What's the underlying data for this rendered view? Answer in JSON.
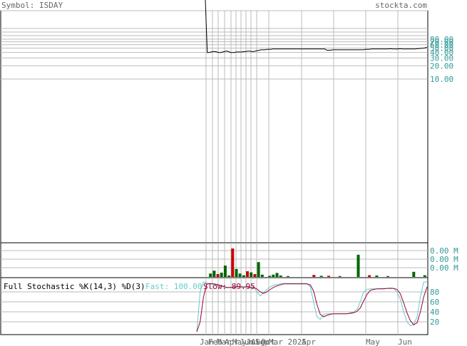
{
  "header": {
    "symbol_label": "Symbol: ISDAY",
    "site_label": "stockta.com"
  },
  "colors": {
    "price_line": "#000000",
    "grid": "#bbbbbb",
    "axis_text": "#339999",
    "volume_up": "#006600",
    "volume_down": "#cc0000",
    "fast_line": "#66cccc",
    "slow_line": "#990033",
    "stoch_title": "#000000"
  },
  "chart_data": [
    {
      "type": "line",
      "panel": "price",
      "scale": "log",
      "y_ticks": [
        "80.00",
        "70.00",
        "60.00",
        "50.00",
        "40.00",
        "30.00",
        "20.00",
        "10.00"
      ],
      "y_tick_values": [
        80,
        70,
        60,
        50,
        40,
        30,
        20,
        10
      ],
      "x_ticks": [
        "Jan",
        "Feb",
        "Mar",
        "Apr",
        "May",
        "Jun",
        "Jul",
        "Aug",
        "Sep",
        "Oct",
        "Nov",
        "Dec",
        "Mar 2025",
        "Apr",
        "May",
        "Jun"
      ],
      "series": [
        {
          "values": [
            5000,
            40,
            40,
            41,
            42,
            42,
            41,
            40,
            40,
            41,
            42,
            43,
            42,
            40,
            40,
            40,
            41,
            41,
            41,
            41,
            42,
            42,
            43,
            43,
            42,
            42,
            43,
            44,
            45,
            46,
            46,
            46,
            47,
            47,
            47,
            48,
            48,
            48,
            48,
            48,
            48,
            48,
            48,
            48,
            48,
            48,
            48,
            48,
            48,
            48,
            48,
            48,
            48,
            48,
            48,
            48,
            48,
            48,
            48,
            48,
            48,
            48,
            48,
            45,
            45,
            45,
            46,
            46,
            46,
            46,
            46,
            46,
            46,
            46,
            46,
            46,
            46,
            46,
            46,
            46,
            46,
            46,
            46,
            47,
            47,
            47,
            48,
            48,
            48,
            48,
            48,
            48,
            48,
            48,
            48,
            48,
            49,
            48,
            48,
            48,
            48,
            49,
            48,
            48,
            48,
            48,
            48,
            48,
            48,
            48,
            49,
            49,
            50,
            50,
            51,
            52
          ]
        }
      ]
    },
    {
      "type": "bar",
      "panel": "volume",
      "y_ticks": [
        "0.00 M",
        "0.00 M",
        "0.00 M"
      ],
      "bars": [
        {
          "i": 1,
          "v": 0.12,
          "dir": "up"
        },
        {
          "i": 2,
          "v": 0.22,
          "dir": "up"
        },
        {
          "i": 3,
          "v": 0.1,
          "dir": "down"
        },
        {
          "i": 4,
          "v": 0.15,
          "dir": "up"
        },
        {
          "i": 5,
          "v": 0.4,
          "dir": "up"
        },
        {
          "i": 6,
          "v": 0.05,
          "dir": "up"
        },
        {
          "i": 7,
          "v": 1.0,
          "dir": "down"
        },
        {
          "i": 8,
          "v": 0.28,
          "dir": "up"
        },
        {
          "i": 9,
          "v": 0.12,
          "dir": "up"
        },
        {
          "i": 10,
          "v": 0.06,
          "dir": "up"
        },
        {
          "i": 11,
          "v": 0.2,
          "dir": "down"
        },
        {
          "i": 12,
          "v": 0.16,
          "dir": "up"
        },
        {
          "i": 13,
          "v": 0.1,
          "dir": "down"
        },
        {
          "i": 14,
          "v": 0.52,
          "dir": "up"
        },
        {
          "i": 15,
          "v": 0.08,
          "dir": "up"
        },
        {
          "i": 17,
          "v": 0.04,
          "dir": "up"
        },
        {
          "i": 18,
          "v": 0.08,
          "dir": "up"
        },
        {
          "i": 19,
          "v": 0.14,
          "dir": "up"
        },
        {
          "i": 20,
          "v": 0.05,
          "dir": "up"
        },
        {
          "i": 22,
          "v": 0.03,
          "dir": "up"
        },
        {
          "i": 29,
          "v": 0.07,
          "dir": "down"
        },
        {
          "i": 31,
          "v": 0.04,
          "dir": "up"
        },
        {
          "i": 33,
          "v": 0.04,
          "dir": "down"
        },
        {
          "i": 36,
          "v": 0.03,
          "dir": "up"
        },
        {
          "i": 41,
          "v": 0.78,
          "dir": "up"
        },
        {
          "i": 44,
          "v": 0.06,
          "dir": "down"
        },
        {
          "i": 46,
          "v": 0.05,
          "dir": "up"
        },
        {
          "i": 49,
          "v": 0.03,
          "dir": "up"
        },
        {
          "i": 56,
          "v": 0.18,
          "dir": "up"
        },
        {
          "i": 59,
          "v": 0.06,
          "dir": "up"
        }
      ]
    },
    {
      "type": "line",
      "panel": "stochastic",
      "title": "Full Stochastic %K(14,3) %D(3)",
      "fast_label": "Fast: 100.00",
      "slow_label": "Slow: 89.95",
      "y_ticks": [
        "80",
        "60",
        "40",
        "20"
      ],
      "y_tick_values": [
        80,
        60,
        40,
        20
      ],
      "ylim": [
        0,
        100
      ],
      "series": [
        {
          "name": "Fast",
          "values": [
            0,
            80,
            100,
            98,
            96,
            95,
            94,
            92,
            90,
            88,
            89,
            90,
            91,
            90,
            89,
            90,
            89,
            90,
            80,
            72,
            78,
            85,
            90,
            93,
            95,
            96,
            97,
            97,
            97,
            97,
            97,
            97,
            97,
            97,
            90,
            60,
            30,
            25,
            35,
            36,
            36,
            36,
            36,
            36,
            36,
            36,
            38,
            40,
            45,
            60,
            80,
            85,
            86,
            86,
            86,
            87,
            87,
            87,
            88,
            87,
            80,
            65,
            40,
            20,
            12,
            15,
            30,
            70,
            100,
            100
          ]
        },
        {
          "name": "Slow",
          "values": [
            0,
            20,
            70,
            95,
            97,
            96,
            95,
            93,
            91,
            89,
            89,
            89,
            90,
            90,
            90,
            90,
            89,
            89,
            86,
            80,
            77,
            80,
            85,
            89,
            92,
            94,
            96,
            96,
            96,
            96,
            96,
            96,
            96,
            96,
            94,
            82,
            55,
            35,
            30,
            33,
            35,
            36,
            36,
            36,
            36,
            36,
            37,
            38,
            41,
            48,
            62,
            75,
            83,
            85,
            86,
            86,
            86,
            87,
            87,
            87,
            85,
            76,
            58,
            38,
            22,
            14,
            18,
            40,
            70,
            90
          ]
        }
      ]
    }
  ]
}
